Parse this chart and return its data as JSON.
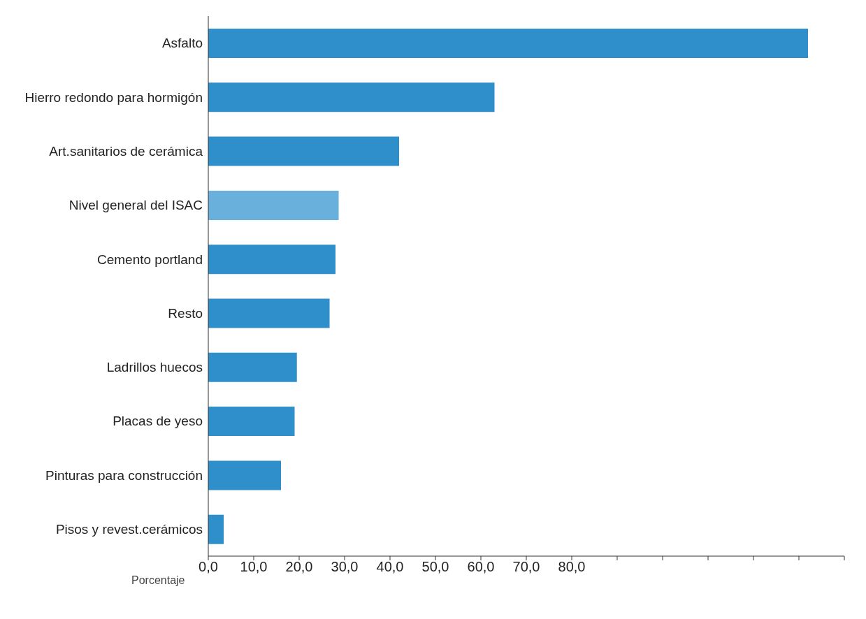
{
  "chart_data": {
    "type": "bar",
    "orientation": "horizontal",
    "xlabel": "Porcentaje",
    "categories": [
      "Asfalto",
      "Hierro redondo para hormigón",
      "Art.sanitarios de cerámica",
      "Nivel general del ISAC",
      "Cemento portland",
      "Resto",
      "Ladrillos huecos",
      "Placas de yeso",
      "Pinturas para construcción",
      "Pisos y revest.cerámicos"
    ],
    "values": [
      132,
      63,
      42,
      28.7,
      28,
      26.7,
      19.5,
      19,
      16,
      3.4
    ],
    "colors": [
      "#2e8fca",
      "#2e8fca",
      "#2e8fca",
      "#6ab0dc",
      "#2e8fca",
      "#2e8fca",
      "#2e8fca",
      "#2e8fca",
      "#2e8fca",
      "#2e8fca"
    ],
    "xlim": [
      0,
      140
    ],
    "xticks": [
      {
        "value": 0,
        "label": "0,0"
      },
      {
        "value": 10,
        "label": "10,0"
      },
      {
        "value": 20,
        "label": "20,0"
      },
      {
        "value": 30,
        "label": "30,0"
      },
      {
        "value": 40,
        "label": "40,0"
      },
      {
        "value": 50,
        "label": "50,0"
      },
      {
        "value": 60,
        "label": "60,0"
      },
      {
        "value": 70,
        "label": "70,0"
      },
      {
        "value": 80,
        "label": "80,0"
      },
      {
        "value": 90,
        "label": null
      },
      {
        "value": 100,
        "label": null
      },
      {
        "value": 110,
        "label": null
      },
      {
        "value": 120,
        "label": null
      },
      {
        "value": 130,
        "label": null
      },
      {
        "value": 140,
        "label": null
      }
    ],
    "grid": false,
    "legend": false
  }
}
